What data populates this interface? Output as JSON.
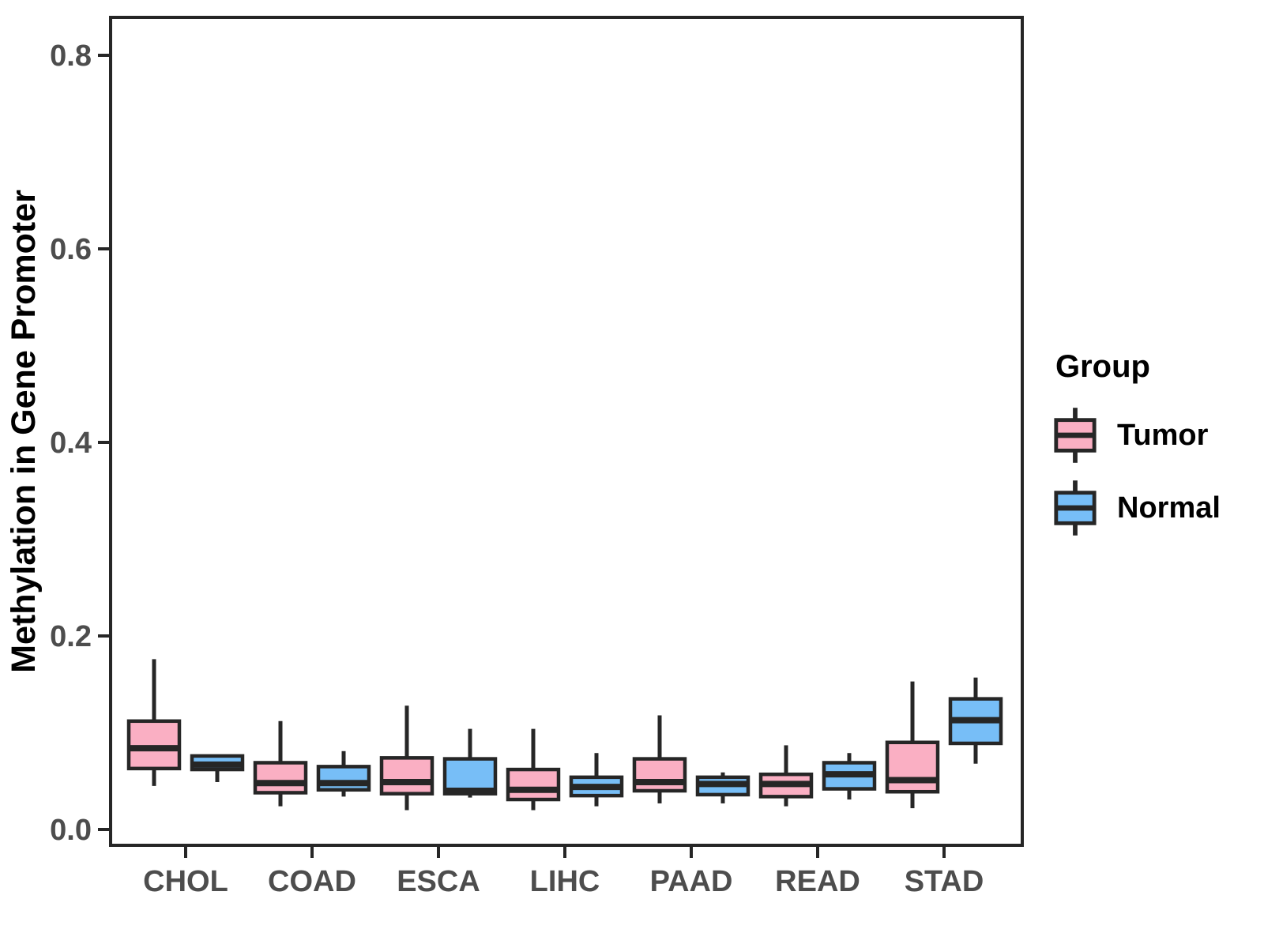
{
  "chart_data": {
    "type": "boxplot",
    "title": "",
    "xlabel": "",
    "ylabel": "Methylation in Gene Promoter",
    "ylim": [
      0,
      0.85
    ],
    "y_ticks": [
      0.0,
      0.2,
      0.4,
      0.6,
      0.8
    ],
    "y_tick_labels": [
      "0.0",
      "0.2",
      "0.4",
      "0.6",
      "0.8"
    ],
    "categories": [
      "CHOL",
      "COAD",
      "ESCA",
      "LIHC",
      "PAAD",
      "READ",
      "STAD"
    ],
    "grid": "off",
    "legend": {
      "title": "Group",
      "position": "right",
      "entries": [
        "Tumor",
        "Normal"
      ]
    },
    "series": [
      {
        "name": "Tumor",
        "color": "#FAAFC3",
        "boxes": [
          {
            "category": "CHOL",
            "whisker_low": 0.045,
            "q1": 0.063,
            "median": 0.084,
            "q3": 0.112,
            "whisker_high": 0.176
          },
          {
            "category": "COAD",
            "whisker_low": 0.024,
            "q1": 0.038,
            "median": 0.048,
            "q3": 0.069,
            "whisker_high": 0.112
          },
          {
            "category": "ESCA",
            "whisker_low": 0.02,
            "q1": 0.037,
            "median": 0.049,
            "q3": 0.074,
            "whisker_high": 0.128
          },
          {
            "category": "LIHC",
            "whisker_low": 0.02,
            "q1": 0.031,
            "median": 0.041,
            "q3": 0.062,
            "whisker_high": 0.104
          },
          {
            "category": "PAAD",
            "whisker_low": 0.027,
            "q1": 0.04,
            "median": 0.049,
            "q3": 0.073,
            "whisker_high": 0.118
          },
          {
            "category": "READ",
            "whisker_low": 0.024,
            "q1": 0.034,
            "median": 0.047,
            "q3": 0.057,
            "whisker_high": 0.087
          },
          {
            "category": "STAD",
            "whisker_low": 0.022,
            "q1": 0.039,
            "median": 0.051,
            "q3": 0.09,
            "whisker_high": 0.153
          }
        ]
      },
      {
        "name": "Normal",
        "color": "#77BEF7",
        "boxes": [
          {
            "category": "CHOL",
            "whisker_low": 0.049,
            "q1": 0.062,
            "median": 0.067,
            "q3": 0.076,
            "whisker_high": 0.076
          },
          {
            "category": "COAD",
            "whisker_low": 0.034,
            "q1": 0.041,
            "median": 0.048,
            "q3": 0.065,
            "whisker_high": 0.081
          },
          {
            "category": "ESCA",
            "whisker_low": 0.033,
            "q1": 0.037,
            "median": 0.04,
            "q3": 0.073,
            "whisker_high": 0.104
          },
          {
            "category": "LIHC",
            "whisker_low": 0.024,
            "q1": 0.035,
            "median": 0.044,
            "q3": 0.054,
            "whisker_high": 0.079
          },
          {
            "category": "PAAD",
            "whisker_low": 0.027,
            "q1": 0.036,
            "median": 0.047,
            "q3": 0.054,
            "whisker_high": 0.059
          },
          {
            "category": "READ",
            "whisker_low": 0.031,
            "q1": 0.042,
            "median": 0.057,
            "q3": 0.069,
            "whisker_high": 0.079
          },
          {
            "category": "STAD",
            "whisker_low": 0.068,
            "q1": 0.089,
            "median": 0.113,
            "q3": 0.135,
            "whisker_high": 0.157
          }
        ]
      }
    ]
  },
  "colors": {
    "tumor_fill": "#FAAFC3",
    "normal_fill": "#77BEF7",
    "box_border": "#262626",
    "panel_border": "#262626",
    "tick_text": "#4d4d4d",
    "title_text": "#000000",
    "background": "#ffffff"
  }
}
